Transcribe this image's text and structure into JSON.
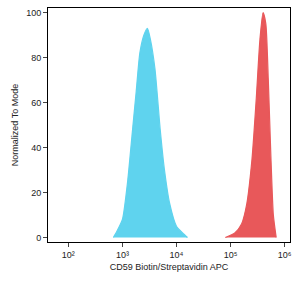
{
  "chart_data": {
    "type": "area",
    "x_label": "CD59 Biotin/Streptavidin APC",
    "y_label": "Normalized To Mode",
    "log": "x",
    "grid": false,
    "xlim": [
      42,
      1260000
    ],
    "ylim": [
      -2,
      102
    ],
    "xticks": [
      {
        "value": 100,
        "label": "10²"
      },
      {
        "value": 1000,
        "label": "10³"
      },
      {
        "value": 10000,
        "label": "10⁴"
      },
      {
        "value": 100000,
        "label": "10⁵"
      },
      {
        "value": 1000000,
        "label": "10⁶"
      }
    ],
    "yticks": [
      0,
      20,
      40,
      60,
      80,
      100
    ],
    "series": [
      {
        "color": "#5fd3ee",
        "x": [
          680,
          800,
          1000,
          1250,
          1500,
          1800,
          2100,
          2500,
          2900,
          3300,
          4000,
          5000,
          6000,
          7500,
          10000,
          13000,
          16000
        ],
        "values": [
          0,
          3,
          8,
          25,
          45,
          65,
          82,
          90,
          93,
          88,
          75,
          48,
          30,
          15,
          5,
          2,
          0
        ]
      },
      {
        "color": "#e8585a",
        "x": [
          80000,
          120000,
          160000,
          200000,
          250000,
          300000,
          350000,
          400000,
          450000,
          500000,
          560000,
          620000,
          700000
        ],
        "values": [
          0,
          2,
          6,
          15,
          35,
          62,
          88,
          100,
          95,
          70,
          35,
          10,
          0
        ]
      }
    ]
  }
}
